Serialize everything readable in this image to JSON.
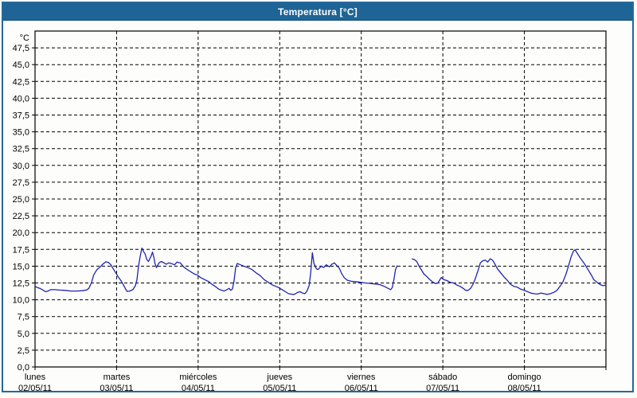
{
  "window": {
    "title": "Temperatura [°C]"
  },
  "colors": {
    "titlebar_bg": "#1e6496",
    "titlebar_text": "#ffffff",
    "frame_border": "#26689a",
    "plot_bg": "#ffffff",
    "grid": "#000000",
    "line": "#2222b2"
  },
  "chart_data": {
    "type": "line",
    "title": "Temperatura [°C]",
    "legend": "none",
    "grid": "dashed-both-axes",
    "y_axis": {
      "unit_label": "°C",
      "min": 0,
      "max": 50,
      "tick_step": 2.5,
      "decimal_separator": ",",
      "tick_labels": [
        "0,0",
        "2,5",
        "5,0",
        "7,5",
        "10,0",
        "12,5",
        "15,0",
        "17,5",
        "20,0",
        "22,5",
        "25,0",
        "27,5",
        "30,0",
        "32,5",
        "35,0",
        "37,5",
        "40,0",
        "42,5",
        "45,0",
        "47,5"
      ]
    },
    "x_axis": {
      "range_days": 7,
      "days": [
        {
          "name": "lunes",
          "date": "02/05/11"
        },
        {
          "name": "martes",
          "date": "03/05/11"
        },
        {
          "name": "miércoles",
          "date": "04/05/11"
        },
        {
          "name": "jueves",
          "date": "05/05/11"
        },
        {
          "name": "viernes",
          "date": "06/05/11"
        },
        {
          "name": "sábado",
          "date": "07/05/11"
        },
        {
          "name": "domingo",
          "date": "08/05/11"
        }
      ]
    },
    "series": [
      {
        "name": "Temperatura [°C]",
        "color": "#2222b2",
        "points": [
          [
            0.0,
            12.0
          ],
          [
            0.03,
            11.8
          ],
          [
            0.06,
            11.7
          ],
          [
            0.09,
            11.5
          ],
          [
            0.13,
            11.2
          ],
          [
            0.16,
            11.3
          ],
          [
            0.19,
            11.5
          ],
          [
            0.24,
            11.5
          ],
          [
            0.3,
            11.45
          ],
          [
            0.37,
            11.4
          ],
          [
            0.44,
            11.3
          ],
          [
            0.52,
            11.3
          ],
          [
            0.58,
            11.35
          ],
          [
            0.63,
            11.45
          ],
          [
            0.66,
            11.7
          ],
          [
            0.69,
            12.5
          ],
          [
            0.72,
            13.7
          ],
          [
            0.76,
            14.5
          ],
          [
            0.8,
            14.9
          ],
          [
            0.84,
            15.4
          ],
          [
            0.87,
            15.65
          ],
          [
            0.9,
            15.55
          ],
          [
            0.93,
            15.2
          ],
          [
            0.96,
            14.6
          ],
          [
            0.99,
            14.0
          ],
          [
            1.02,
            13.4
          ],
          [
            1.05,
            12.9
          ],
          [
            1.08,
            12.3
          ],
          [
            1.11,
            11.6
          ],
          [
            1.13,
            11.25
          ],
          [
            1.16,
            11.3
          ],
          [
            1.2,
            11.5
          ],
          [
            1.23,
            12.1
          ],
          [
            1.25,
            13.0
          ],
          [
            1.27,
            15.1
          ],
          [
            1.29,
            16.5
          ],
          [
            1.31,
            17.7
          ],
          [
            1.33,
            17.2
          ],
          [
            1.35,
            16.8
          ],
          [
            1.37,
            16.0
          ],
          [
            1.39,
            15.7
          ],
          [
            1.42,
            16.4
          ],
          [
            1.44,
            17.1
          ],
          [
            1.46,
            16.2
          ],
          [
            1.47,
            15.4
          ],
          [
            1.49,
            14.8
          ],
          [
            1.52,
            15.5
          ],
          [
            1.55,
            15.7
          ],
          [
            1.58,
            15.5
          ],
          [
            1.61,
            15.3
          ],
          [
            1.64,
            15.5
          ],
          [
            1.67,
            15.4
          ],
          [
            1.71,
            15.2
          ],
          [
            1.74,
            15.6
          ],
          [
            1.78,
            15.5
          ],
          [
            1.83,
            14.8
          ],
          [
            1.88,
            14.4
          ],
          [
            1.93,
            14.0
          ],
          [
            1.96,
            13.8
          ],
          [
            1.99,
            13.7
          ],
          [
            2.03,
            13.3
          ],
          [
            2.08,
            13.0
          ],
          [
            2.13,
            12.7
          ],
          [
            2.17,
            12.3
          ],
          [
            2.22,
            11.9
          ],
          [
            2.25,
            11.6
          ],
          [
            2.29,
            11.4
          ],
          [
            2.32,
            11.3
          ],
          [
            2.35,
            11.5
          ],
          [
            2.38,
            11.7
          ],
          [
            2.4,
            11.4
          ],
          [
            2.42,
            11.6
          ],
          [
            2.44,
            12.8
          ],
          [
            2.46,
            14.8
          ],
          [
            2.48,
            15.4
          ],
          [
            2.52,
            15.2
          ],
          [
            2.56,
            15.0
          ],
          [
            2.61,
            14.8
          ],
          [
            2.66,
            14.5
          ],
          [
            2.71,
            14.0
          ],
          [
            2.76,
            13.6
          ],
          [
            2.81,
            13.0
          ],
          [
            2.86,
            12.6
          ],
          [
            2.91,
            12.2
          ],
          [
            2.95,
            12.0
          ],
          [
            2.99,
            11.8
          ],
          [
            3.03,
            11.5
          ],
          [
            3.07,
            11.2
          ],
          [
            3.11,
            10.9
          ],
          [
            3.15,
            10.8
          ],
          [
            3.18,
            10.8
          ],
          [
            3.22,
            11.1
          ],
          [
            3.25,
            11.2
          ],
          [
            3.28,
            11.0
          ],
          [
            3.31,
            10.9
          ],
          [
            3.33,
            11.2
          ],
          [
            3.36,
            12.1
          ],
          [
            3.38,
            14.0
          ],
          [
            3.4,
            17.0
          ],
          [
            3.42,
            15.4
          ],
          [
            3.45,
            14.6
          ],
          [
            3.47,
            14.5
          ],
          [
            3.51,
            15.0
          ],
          [
            3.54,
            14.8
          ],
          [
            3.57,
            15.2
          ],
          [
            3.61,
            14.9
          ],
          [
            3.64,
            15.3
          ],
          [
            3.67,
            15.5
          ],
          [
            3.7,
            15.1
          ],
          [
            3.73,
            14.7
          ],
          [
            3.76,
            13.9
          ],
          [
            3.79,
            13.3
          ],
          [
            3.83,
            12.9
          ],
          [
            3.88,
            12.75
          ],
          [
            3.93,
            12.7
          ],
          [
            3.99,
            12.6
          ],
          [
            4.05,
            12.5
          ],
          [
            4.1,
            12.45
          ],
          [
            4.17,
            12.35
          ],
          [
            4.23,
            12.25
          ],
          [
            4.28,
            12.0
          ],
          [
            4.33,
            11.7
          ],
          [
            4.36,
            11.5
          ],
          [
            4.38,
            11.8
          ],
          [
            4.4,
            13.0
          ],
          [
            4.42,
            14.5
          ],
          [
            4.44,
            15.1
          ],
          null,
          [
            4.62,
            16.1
          ],
          [
            4.65,
            16.0
          ],
          [
            4.68,
            15.7
          ],
          [
            4.71,
            15.0
          ],
          [
            4.74,
            14.4
          ],
          [
            4.77,
            13.8
          ],
          [
            4.8,
            13.5
          ],
          [
            4.84,
            13.0
          ],
          [
            4.87,
            12.7
          ],
          [
            4.91,
            12.4
          ],
          [
            4.94,
            12.5
          ],
          [
            4.98,
            13.3
          ],
          [
            5.01,
            13.0
          ],
          [
            5.05,
            12.85
          ],
          [
            5.09,
            12.6
          ],
          [
            5.13,
            12.5
          ],
          [
            5.17,
            12.2
          ],
          [
            5.21,
            12.0
          ],
          [
            5.25,
            11.7
          ],
          [
            5.28,
            11.4
          ],
          [
            5.31,
            11.4
          ],
          [
            5.34,
            11.7
          ],
          [
            5.37,
            12.3
          ],
          [
            5.4,
            13.2
          ],
          [
            5.43,
            14.3
          ],
          [
            5.46,
            15.5
          ],
          [
            5.49,
            15.8
          ],
          [
            5.52,
            15.9
          ],
          [
            5.55,
            15.6
          ],
          [
            5.58,
            16.1
          ],
          [
            5.61,
            15.9
          ],
          [
            5.64,
            15.3
          ],
          [
            5.67,
            14.6
          ],
          [
            5.71,
            14.0
          ],
          [
            5.75,
            13.4
          ],
          [
            5.79,
            12.9
          ],
          [
            5.83,
            12.3
          ],
          [
            5.87,
            12.0
          ],
          [
            5.91,
            11.9
          ],
          [
            5.95,
            11.6
          ],
          [
            5.99,
            11.45
          ],
          [
            6.04,
            11.2
          ],
          [
            6.08,
            11.0
          ],
          [
            6.12,
            10.9
          ],
          [
            6.16,
            10.85
          ],
          [
            6.2,
            11.0
          ],
          [
            6.24,
            10.9
          ],
          [
            6.28,
            10.8
          ],
          [
            6.32,
            10.9
          ],
          [
            6.36,
            11.1
          ],
          [
            6.4,
            11.4
          ],
          [
            6.43,
            11.9
          ],
          [
            6.47,
            12.6
          ],
          [
            6.51,
            13.8
          ],
          [
            6.54,
            15.0
          ],
          [
            6.57,
            16.3
          ],
          [
            6.6,
            17.2
          ],
          [
            6.62,
            17.45
          ],
          [
            6.65,
            16.9
          ],
          [
            6.68,
            16.3
          ],
          [
            6.71,
            15.8
          ],
          [
            6.74,
            15.3
          ],
          [
            6.77,
            14.7
          ],
          [
            6.8,
            14.1
          ],
          [
            6.83,
            13.5
          ],
          [
            6.85,
            13.0
          ],
          [
            6.88,
            12.7
          ],
          [
            6.91,
            12.4
          ],
          [
            6.94,
            12.2
          ],
          [
            6.97,
            12.1
          ],
          [
            7.0,
            12.2
          ]
        ]
      }
    ]
  }
}
